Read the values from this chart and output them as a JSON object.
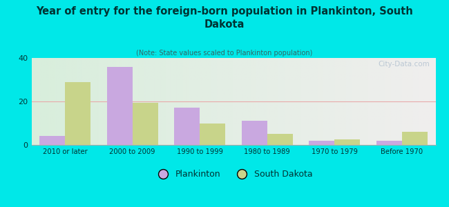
{
  "title": "Year of entry for the foreign-born population in Plankinton, South\nDakota",
  "subtitle": "(Note: State values scaled to Plankinton population)",
  "categories": [
    "2010 or later",
    "2000 to 2009",
    "1990 to 1999",
    "1980 to 1989",
    "1970 to 1979",
    "Before 1970"
  ],
  "plankinton": [
    4,
    36,
    17,
    11,
    2,
    2
  ],
  "south_dakota": [
    29,
    19.5,
    10,
    5,
    2.5,
    6
  ],
  "plankinton_color": "#c9a8e0",
  "south_dakota_color": "#c8d48a",
  "background_outer": "#00e8e8",
  "background_inner_left": "#d8eedc",
  "background_inner_right": "#f0eeee",
  "ylim": [
    0,
    40
  ],
  "yticks": [
    0,
    20,
    40
  ],
  "bar_width": 0.38,
  "legend_labels": [
    "Plankinton",
    "South Dakota"
  ],
  "watermark": "City-Data.com",
  "title_color": "#003333",
  "subtitle_color": "#336666",
  "tick_color": "#003333",
  "grid_color": "#e8aaaa",
  "bottom_line_color": "#aaaaaa"
}
